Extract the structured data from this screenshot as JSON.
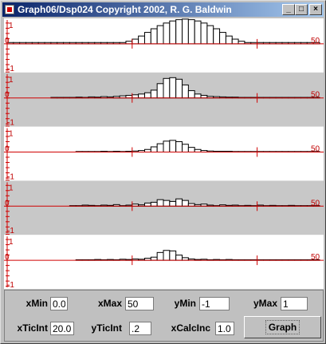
{
  "window": {
    "title": "Graph06/Dsp024 Copyright 2002, R. G. Baldwin",
    "buttons": {
      "minimize": "_",
      "maximize": "□",
      "close": "×"
    }
  },
  "colors": {
    "axis": "#d00000",
    "shade": "#c8c8c8",
    "bar_fill": "#ffffff",
    "bar_stroke": "#000000",
    "tick_label": "#c00000"
  },
  "plots": {
    "x_max_label": "50",
    "y_labels": {
      "top": "1",
      "mid": "0",
      "bottom": "-1"
    }
  },
  "chart_data": [
    {
      "type": "bar",
      "x_range": [
        0,
        50
      ],
      "y_range": [
        -1,
        1
      ],
      "shaded": false,
      "values": [
        0.05,
        0.05,
        0.05,
        0.05,
        0.05,
        0.05,
        0.05,
        0.05,
        0.05,
        0.05,
        0.05,
        0.05,
        0.05,
        0.05,
        0.05,
        0.05,
        0.05,
        0.05,
        0.05,
        0.1,
        0.18,
        0.3,
        0.44,
        0.58,
        0.7,
        0.8,
        0.88,
        0.93,
        0.95,
        0.93,
        0.88,
        0.8,
        0.7,
        0.58,
        0.44,
        0.3,
        0.18,
        0.1,
        0.05,
        0.05,
        0.05,
        0.05,
        0.05,
        0.05,
        0.05,
        0.05,
        0.05,
        0.05,
        0.05,
        0.05
      ]
    },
    {
      "type": "bar",
      "x_range": [
        0,
        50
      ],
      "y_range": [
        -1,
        1
      ],
      "shaded": true,
      "values": [
        0,
        0,
        0,
        0,
        0,
        0,
        0,
        0.02,
        0.02,
        0.02,
        0.02,
        0.03,
        0.02,
        0.04,
        0.03,
        0.05,
        0.04,
        0.06,
        0.08,
        0.1,
        0.12,
        0.15,
        0.2,
        0.3,
        0.55,
        0.75,
        0.78,
        0.72,
        0.5,
        0.28,
        0.15,
        0.1,
        0.06,
        0.05,
        0.04,
        0.03,
        0.03,
        0.02,
        0.02,
        0.02,
        0.02,
        0.02,
        0.02,
        0.02,
        0.02,
        0.02,
        0.02,
        0.02,
        0.02,
        0.02
      ]
    },
    {
      "type": "bar",
      "x_range": [
        0,
        50
      ],
      "y_range": [
        -1,
        1
      ],
      "shaded": false,
      "values": [
        0,
        0,
        0,
        0,
        0,
        0,
        0,
        0,
        0,
        0,
        0,
        0.02,
        0.02,
        0.02,
        0.02,
        0.03,
        0.02,
        0.03,
        0.02,
        0.03,
        0.04,
        0.06,
        0.1,
        0.2,
        0.32,
        0.42,
        0.45,
        0.4,
        0.3,
        0.18,
        0.1,
        0.06,
        0.04,
        0.03,
        0.03,
        0.03,
        0.02,
        0.02,
        0.02,
        0.02,
        0.02,
        0.02,
        0.02,
        0.02,
        0.02,
        0.02,
        0.02,
        0.02,
        0.02,
        0.02
      ]
    },
    {
      "type": "bar",
      "x_range": [
        0,
        50
      ],
      "y_range": [
        -1,
        1
      ],
      "shaded": true,
      "values": [
        0,
        0,
        0,
        0,
        0,
        0,
        0,
        0,
        0,
        0,
        0.02,
        0.02,
        0.04,
        0.03,
        0.02,
        0.04,
        0.03,
        0.06,
        0.02,
        0.04,
        0.08,
        0.05,
        0.12,
        0.15,
        0.25,
        0.22,
        0.18,
        0.28,
        0.22,
        0.1,
        0.06,
        0.08,
        0.04,
        0.02,
        0.05,
        0.03,
        0.04,
        0.02,
        0.03,
        0.02,
        0.04,
        0.02,
        0.03,
        0.02,
        0.02,
        0.03,
        0.02,
        0.02,
        0.02,
        0.02
      ]
    },
    {
      "type": "bar",
      "x_range": [
        0,
        50
      ],
      "y_range": [
        -1,
        1
      ],
      "shaded": false,
      "values": [
        0,
        0,
        0,
        0,
        0,
        0,
        0,
        0,
        0,
        0,
        0,
        0.02,
        0.02,
        0.02,
        0.03,
        0.02,
        0.03,
        0.02,
        0.04,
        0.03,
        0.05,
        0.04,
        0.08,
        0.12,
        0.3,
        0.38,
        0.36,
        0.2,
        0.1,
        0.05,
        0.03,
        0.04,
        0.02,
        0.03,
        0.02,
        0.03,
        0.02,
        0.02,
        0.02,
        0.02,
        0.02,
        0.02,
        0.02,
        0.02,
        0.02,
        0.02,
        0.02,
        0.02,
        0.02,
        0.02
      ]
    }
  ],
  "controls": {
    "xMin": {
      "label": "xMin",
      "value": "0.0"
    },
    "xMax": {
      "label": "xMax",
      "value": "50"
    },
    "yMin": {
      "label": "yMin",
      "value": "-1"
    },
    "yMax": {
      "label": "yMax",
      "value": "1"
    },
    "xTicInt": {
      "label": "xTicInt",
      "value": "20.0"
    },
    "yTicInt": {
      "label": "yTicInt",
      "value": ".2"
    },
    "xCalcInc": {
      "label": "xCalcInc",
      "value": "1.0"
    },
    "graph_button": "Graph"
  }
}
